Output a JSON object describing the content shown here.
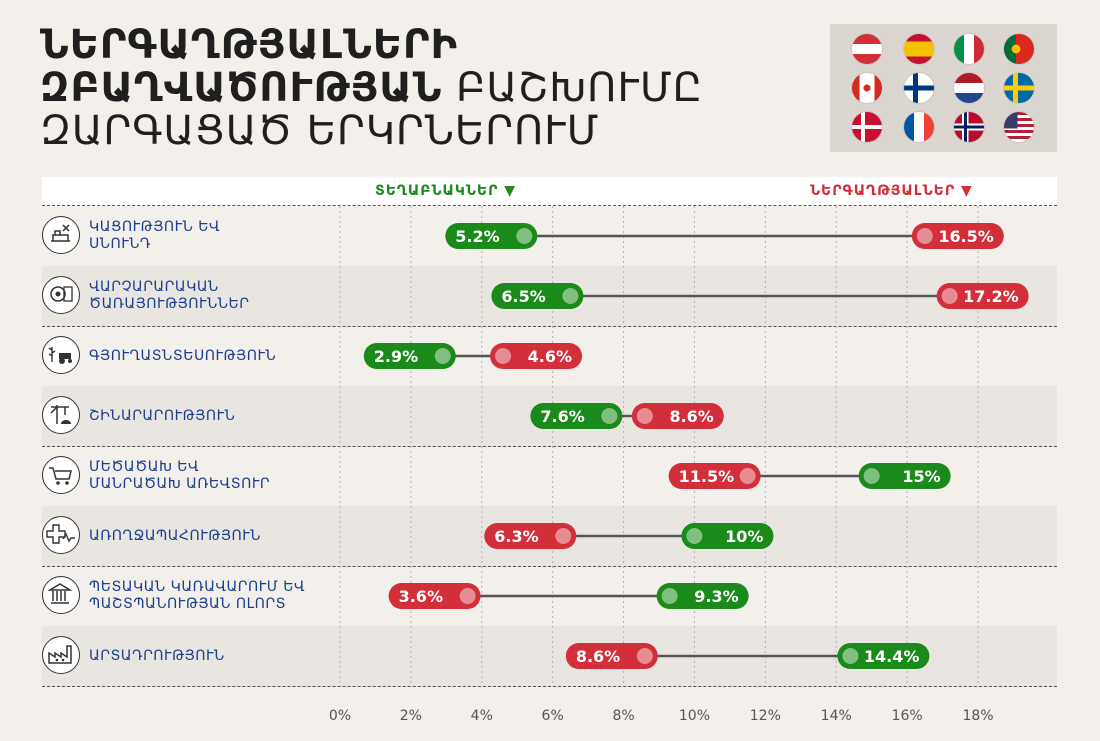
{
  "title": {
    "line1": "ՆԵՐԳԱՂԹՅԱԼՆԵՐԻ",
    "line2_bold": "ԶԲԱՂՎԱԾՈՒԹՅԱՆ",
    "line2_rest": "ԲԱՇԽՈՒՄԸ",
    "line3": "ԶԱՐԳԱՑԱԾ ԵՐԿՐՆԵՐՈՒՄ"
  },
  "flags": [
    "austria-flag",
    "spain-flag",
    "italy-flag",
    "portugal-flag",
    "canada-flag",
    "finland-flag",
    "netherlands-flag",
    "sweden-flag",
    "denmark-flag",
    "france-flag",
    "norway-flag",
    "usa-flag"
  ],
  "legend": {
    "natives": "ՏԵՂԱԲՆԱԿՆԵՐ ▼",
    "immigrants": "ՆԵՐԳԱՂԹՅԱԼՆԵՐ ▼"
  },
  "colors": {
    "natives": "#1a8a1a",
    "immigrants": "#d32f3a",
    "connector": "#555555",
    "label": "#1a3e8c"
  },
  "rows": [
    {
      "label": "ԿԱՑՈՒԹՅՈՒՆ ԵՎ\nՍՆՈՒՆԴ",
      "icon": "hotel-food-icon"
    },
    {
      "label": "ՎԱՐՉԱՐԱՐԱԿԱՆ\nԾԱՌԱՅՈՒԹՅՈՒՆՆԵՐ",
      "icon": "admin-services-icon"
    },
    {
      "label": "ԳՅՈՒՂԱՏՆՏԵՍՈՒԹՅՈՒՆ",
      "icon": "agriculture-icon"
    },
    {
      "label": "ՇԻՆԱՐԱՐՈՒԹՅՈՒՆ",
      "icon": "construction-icon"
    },
    {
      "label": "ՄԵԾԱԾԱԽ ԵՎ\nՄԱՆՐԱԾԱԽ ԱՌԵՎՏՈՒՐ",
      "icon": "trade-cart-icon"
    },
    {
      "label": "ԱՌՈՂՋԱՊԱՀՈՒԹՅՈՒՆ",
      "icon": "healthcare-icon"
    },
    {
      "label": "ՊԵՏԱԿԱՆ ԿԱՌԱՎԱՐՈՒՄ ԵՎ\nՊԱՇՏՊԱՆՈՒԹՅԱՆ ՈԼՈՐՏ",
      "icon": "government-icon"
    },
    {
      "label": "ԱՐՏԱԴՐՈՒԹՅՈՒՆ",
      "icon": "manufacturing-icon"
    }
  ],
  "chart_data": {
    "type": "dumbbell",
    "categories": [
      "ԿԱՑՈՒԹՅՈՒՆ ԵՎ ՍՆՈՒՆԴ",
      "ՎԱՐՉԱՐԱՐԱԿԱՆ ԾԱՌԱՅՈՒԹՅՈՒՆՆԵՐ",
      "ԳՅՈՒՂԱՏՆՏԵՍՈՒԹՅՈՒՆ",
      "ՇԻՆԱՐԱՐՈՒԹՅՈՒՆ",
      "ՄԵԾԱԾԱԽ ԵՎ ՄԱՆՐԱԾԱԽ ԱՌԵՎՏՈՒՐ",
      "ԱՌՈՂՋԱՊԱՀՈՒԹՅՈՒՆ",
      "ՊԵՏԱԿԱՆ ԿԱՌԱՎԱՐՈՒՄ ԵՎ ՊԱՇՏՊԱՆՈՒԹՅԱՆ ՈԼՈՐՏ",
      "ԱՐՏԱԴՐՈՒԹՅՈՒՆ"
    ],
    "series": [
      {
        "name": "ՏԵՂԱԲՆԱԿՆԵՐ",
        "values": [
          5.2,
          6.5,
          2.9,
          7.6,
          15,
          10,
          9.3,
          14.4
        ]
      },
      {
        "name": "ՆԵՐԳԱՂԹՅԱԼՆԵՐ",
        "values": [
          16.5,
          17.2,
          4.6,
          8.6,
          11.5,
          6.3,
          3.6,
          8.6
        ]
      }
    ],
    "value_labels": {
      "natives": [
        "5.2%",
        "6.5%",
        "2.9%",
        "7.6%",
        "15%",
        "10%",
        "9.3%",
        "14.4%"
      ],
      "immigrants": [
        "16.5%",
        "17.2%",
        "4.6%",
        "8.6%",
        "11.5%",
        "6.3%",
        "3.6%",
        "8.6%"
      ]
    },
    "xlim": [
      0,
      18
    ],
    "xticks": [
      "0%",
      "2%",
      "4%",
      "6%",
      "8%",
      "10%",
      "12%",
      "14%",
      "16%",
      "18%"
    ],
    "grid": true,
    "legend_position": "top"
  }
}
